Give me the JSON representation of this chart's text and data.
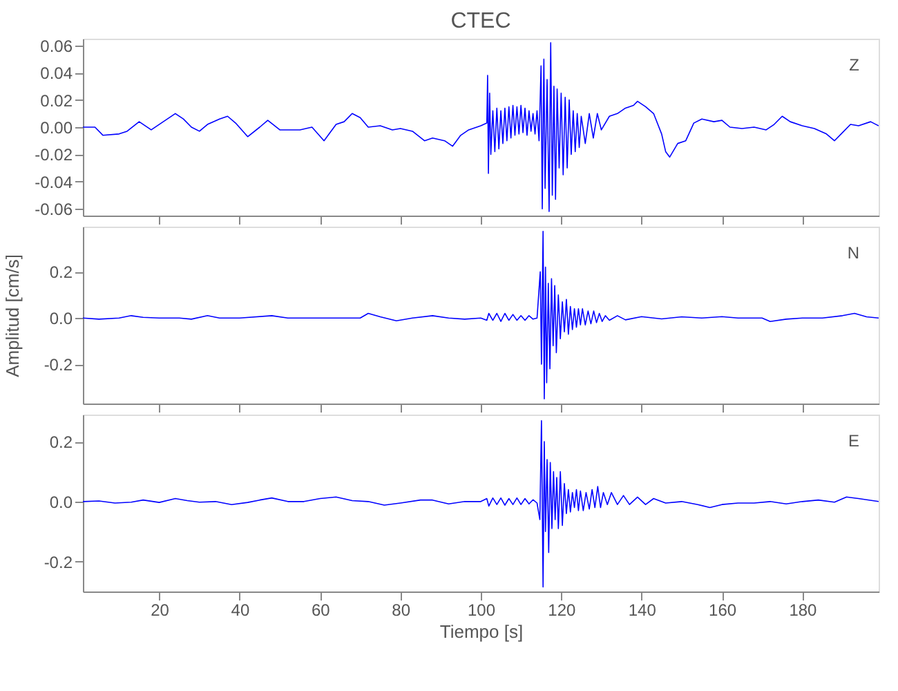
{
  "chart_data": [
    {
      "type": "line",
      "title": "CTEC",
      "annotations": [
        "Z"
      ],
      "tick_labels": "y",
      "grid": false,
      "xlim": [
        1,
        199
      ],
      "xticks": [
        20,
        40,
        60,
        80,
        100,
        120,
        140,
        160,
        180
      ],
      "ylim": [
        -0.065,
        0.065
      ],
      "yticks": [
        {
          "value": -0.06,
          "label": "-0.06"
        },
        {
          "value": -0.04,
          "label": "-0.04"
        },
        {
          "value": -0.02,
          "label": "-0.02"
        },
        {
          "value": 0,
          "label": "0.00"
        },
        {
          "value": 0.02,
          "label": "0.02"
        },
        {
          "value": 0.04,
          "label": "0.04"
        },
        {
          "value": 0.06,
          "label": "0.06"
        }
      ],
      "series": [
        {
          "color": "#0000ff",
          "x": [
            1,
            4,
            6,
            10,
            12,
            15,
            18,
            21,
            24,
            26,
            28,
            30,
            32,
            35,
            37,
            39,
            42,
            45,
            47,
            50,
            55,
            58,
            61,
            64,
            66,
            68,
            70,
            72,
            75,
            78,
            80,
            83,
            86,
            88,
            91,
            93,
            95,
            97,
            100,
            101.5,
            101.7,
            101.9,
            102.2,
            102.5,
            103,
            103.5,
            104,
            104.5,
            105,
            105.5,
            106,
            106.5,
            107,
            107.5,
            108,
            108.5,
            109,
            109.5,
            110,
            110.5,
            111,
            111.5,
            112,
            112.5,
            113,
            113.5,
            114,
            114.5,
            115,
            115.3,
            115.7,
            116,
            116.5,
            117,
            117.4,
            117.8,
            118.2,
            118.6,
            119,
            119.5,
            120,
            120.5,
            121,
            121.5,
            122,
            122.5,
            123,
            123.5,
            124,
            124.5,
            125,
            126,
            127,
            128,
            129,
            130,
            132,
            134,
            136,
            138,
            139,
            141,
            143,
            145,
            146,
            147,
            149,
            151,
            153,
            155,
            158,
            160,
            162,
            165,
            168,
            171,
            173,
            175,
            177,
            180,
            183,
            186,
            188,
            190,
            192,
            194,
            197,
            199
          ],
          "values": [
            0.0,
            0.0,
            -0.006,
            -0.005,
            -0.003,
            0.004,
            -0.002,
            0.004,
            0.01,
            0.006,
            0.0,
            -0.003,
            0.002,
            0.006,
            0.008,
            0.003,
            -0.007,
            0.0,
            0.005,
            -0.002,
            -0.002,
            0.0,
            -0.01,
            0.002,
            0.004,
            0.01,
            0.007,
            0.0,
            0.001,
            -0.002,
            -0.001,
            -0.003,
            -0.01,
            -0.008,
            -0.01,
            -0.014,
            -0.006,
            -0.002,
            0.001,
            0.003,
            0.038,
            -0.034,
            0.025,
            -0.02,
            0.012,
            -0.018,
            0.014,
            -0.016,
            0.012,
            -0.012,
            0.014,
            -0.01,
            0.015,
            -0.008,
            0.016,
            -0.006,
            0.015,
            -0.005,
            0.016,
            -0.004,
            0.014,
            -0.006,
            0.012,
            -0.003,
            0.01,
            -0.005,
            0.012,
            -0.01,
            0.045,
            -0.06,
            0.05,
            -0.045,
            0.035,
            -0.062,
            0.062,
            -0.05,
            0.03,
            -0.053,
            0.028,
            -0.03,
            0.025,
            -0.035,
            0.022,
            -0.03,
            0.02,
            -0.02,
            0.012,
            -0.018,
            0.01,
            -0.015,
            0.008,
            -0.012,
            0.01,
            -0.008,
            0.01,
            -0.002,
            0.008,
            0.01,
            0.014,
            0.016,
            0.019,
            0.015,
            0.01,
            -0.005,
            -0.018,
            -0.022,
            -0.012,
            -0.01,
            0.003,
            0.006,
            0.004,
            0.005,
            0.0,
            -0.001,
            0.0,
            -0.002,
            0.002,
            0.008,
            0.004,
            0.001,
            -0.001,
            -0.005,
            -0.01,
            -0.004,
            0.002,
            0.001,
            0.004,
            0.001
          ]
        }
      ]
    },
    {
      "type": "line",
      "ylabel": "Amplitud [cm/s]",
      "annotations": [
        "N"
      ],
      "tick_labels": "y",
      "grid": false,
      "xlim": [
        1,
        199
      ],
      "xticks": [
        20,
        40,
        60,
        80,
        100,
        120,
        140,
        160,
        180
      ],
      "ylim": [
        -0.37,
        0.395
      ],
      "yticks": [
        {
          "value": -0.2,
          "label": "-0.2"
        },
        {
          "value": 0,
          "label": "0.0"
        },
        {
          "value": 0.2,
          "label": "0.2"
        }
      ],
      "series": [
        {
          "color": "#0000ff",
          "x": [
            1,
            5,
            10,
            13,
            16,
            20,
            25,
            28,
            32,
            35,
            40,
            48,
            52,
            60,
            70,
            72,
            75,
            79,
            83,
            88,
            92,
            96,
            100,
            101.5,
            102,
            103,
            104,
            105,
            106,
            107,
            108,
            109,
            110,
            111,
            112,
            113,
            114,
            114.8,
            115.1,
            115.5,
            115.8,
            116.1,
            116.4,
            116.8,
            117.2,
            117.6,
            118,
            118.4,
            118.8,
            119.3,
            119.8,
            120.3,
            120.8,
            121.3,
            121.8,
            122.3,
            122.8,
            123.3,
            123.8,
            124.3,
            124.8,
            125.3,
            126,
            126.7,
            127.4,
            128.1,
            128.8,
            129.5,
            130.2,
            131,
            132,
            134,
            136,
            140,
            145,
            150,
            155,
            160,
            164,
            170,
            172,
            176,
            180,
            185,
            190,
            193,
            196,
            199
          ],
          "values": [
            0.0,
            -0.005,
            0.0,
            0.01,
            0.003,
            0.0,
            0.0,
            -0.005,
            0.01,
            0.0,
            0.0,
            0.01,
            0.0,
            0.0,
            0.0,
            0.02,
            0.005,
            -0.012,
            0.0,
            0.01,
            0.0,
            -0.005,
            0.0,
            -0.01,
            0.02,
            -0.01,
            0.02,
            -0.015,
            0.02,
            -0.01,
            0.015,
            -0.01,
            0.01,
            -0.01,
            0.01,
            -0.005,
            0.0,
            0.2,
            -0.2,
            0.375,
            -0.35,
            0.22,
            -0.28,
            0.15,
            -0.22,
            0.17,
            -0.12,
            0.14,
            -0.15,
            0.1,
            -0.09,
            0.07,
            -0.06,
            0.08,
            -0.07,
            0.05,
            -0.05,
            0.04,
            -0.04,
            0.04,
            -0.03,
            0.04,
            -0.03,
            0.03,
            -0.025,
            0.03,
            -0.02,
            0.02,
            -0.015,
            0.01,
            -0.01,
            0.01,
            -0.008,
            0.006,
            -0.004,
            0.005,
            0.0,
            0.006,
            0.0,
            0.0,
            -0.015,
            -0.005,
            0.0,
            0.0,
            0.01,
            0.02,
            0.005,
            0.0
          ]
        }
      ]
    },
    {
      "type": "line",
      "xlabel": "Tiempo [s]",
      "annotations": [
        "E"
      ],
      "grid": false,
      "xlim": [
        1,
        199
      ],
      "xticks": [
        20,
        40,
        60,
        80,
        100,
        120,
        140,
        160,
        180
      ],
      "ylim": [
        -0.3,
        0.29
      ],
      "yticks": [
        {
          "value": -0.2,
          "label": "-0.2"
        },
        {
          "value": 0,
          "label": "0.0"
        },
        {
          "value": 0.2,
          "label": "0.2"
        }
      ],
      "series": [
        {
          "color": "#0000ff",
          "x": [
            1,
            5,
            9,
            13,
            16,
            20,
            24,
            27,
            30,
            34,
            38,
            42,
            45,
            48,
            52,
            56,
            60,
            64,
            68,
            72,
            76,
            80,
            85,
            88,
            92,
            96,
            100,
            101.5,
            102,
            103,
            104,
            105,
            106,
            107,
            108,
            109,
            110,
            111,
            112,
            113,
            114,
            114.7,
            115.1,
            115.5,
            115.8,
            116.1,
            116.5,
            116.9,
            117.3,
            117.7,
            118.1,
            118.5,
            118.9,
            119.3,
            119.8,
            120.3,
            120.8,
            121.3,
            121.8,
            122.3,
            122.8,
            123.3,
            123.8,
            124.3,
            124.8,
            125.5,
            126.2,
            127,
            127.7,
            128.4,
            129.1,
            129.8,
            130.5,
            131.5,
            132.5,
            134,
            135.5,
            137,
            139,
            141,
            143,
            146,
            150,
            154,
            157,
            160,
            164,
            168,
            172,
            176,
            180,
            184,
            188,
            191,
            194,
            199
          ],
          "values": [
            0.0,
            0.002,
            -0.005,
            -0.002,
            0.005,
            -0.003,
            0.01,
            0.003,
            -0.002,
            0.0,
            -0.01,
            -0.003,
            0.005,
            0.012,
            0.0,
            0.0,
            0.01,
            0.015,
            0.003,
            0.0,
            -0.012,
            -0.005,
            0.005,
            0.005,
            -0.008,
            0.0,
            0.0,
            0.01,
            -0.015,
            0.012,
            -0.01,
            0.012,
            -0.012,
            0.01,
            -0.01,
            0.012,
            -0.01,
            0.01,
            -0.008,
            0.006,
            -0.005,
            -0.06,
            0.27,
            -0.285,
            0.2,
            -0.1,
            0.14,
            -0.17,
            0.13,
            -0.09,
            0.1,
            -0.06,
            0.08,
            -0.09,
            0.1,
            -0.08,
            0.06,
            -0.04,
            0.04,
            -0.035,
            0.03,
            -0.02,
            0.04,
            -0.03,
            0.035,
            -0.03,
            0.03,
            -0.025,
            0.04,
            -0.02,
            0.05,
            -0.02,
            0.03,
            -0.01,
            0.03,
            -0.01,
            0.02,
            -0.01,
            0.015,
            -0.01,
            0.01,
            -0.005,
            0.0,
            -0.01,
            -0.02,
            -0.01,
            -0.005,
            -0.005,
            0.0,
            -0.008,
            0.0,
            0.005,
            -0.002,
            0.015,
            0.01,
            0.0
          ]
        }
      ]
    }
  ]
}
